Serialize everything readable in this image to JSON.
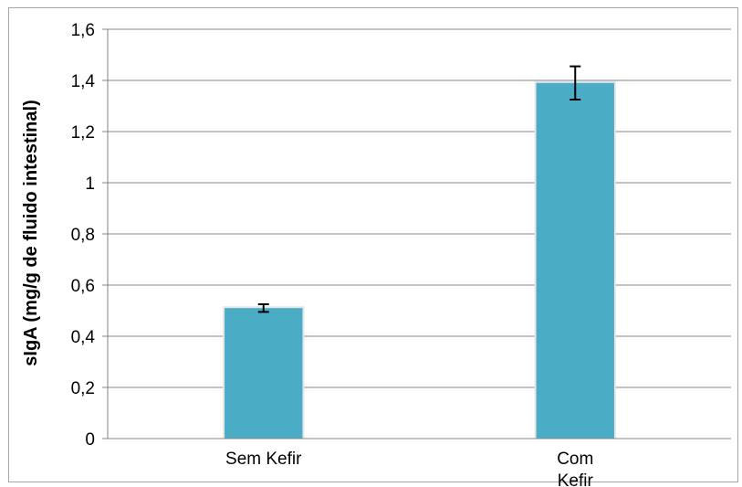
{
  "chart_data": {
    "type": "bar",
    "title": "",
    "xlabel": "",
    "ylabel": "sIgA (mg/g de fluido intestinal)",
    "categories": [
      "Sem Kefir",
      "Com Kefir"
    ],
    "values": [
      0.51,
      1.39
    ],
    "error_bars": [
      0.015,
      0.065
    ],
    "ylim": [
      0,
      1.6
    ],
    "yticks": [
      0,
      0.2,
      0.4,
      0.6,
      0.8,
      1,
      1.2,
      1.4,
      1.6
    ],
    "ytick_labels": [
      "0",
      "0,2",
      "0,4",
      "0,6",
      "0,8",
      "1",
      "1,2",
      "1,4",
      "1,6"
    ],
    "grid": true,
    "legend": "none",
    "colors": {
      "bar": "#4bacc6",
      "grid": "#868686",
      "axis": "#868686",
      "error_bar": "#000000"
    }
  }
}
